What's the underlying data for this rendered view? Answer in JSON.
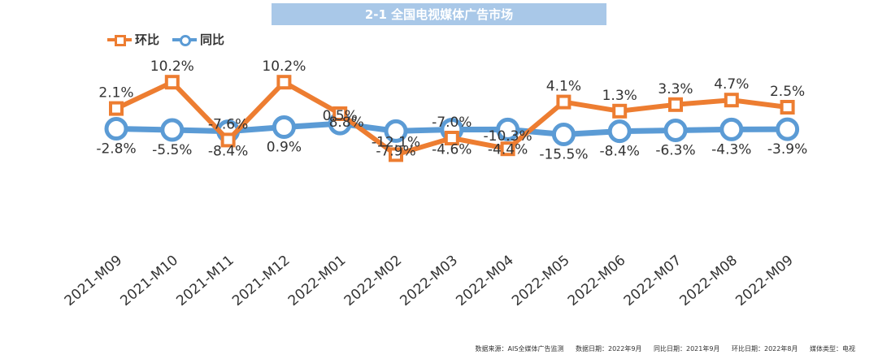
{
  "chart_data": {
    "type": "line",
    "title": "2-1 全国电视媒体广告市场",
    "categories": [
      "2021-M09",
      "2021-M10",
      "2021-M11",
      "2021-M12",
      "2022-M01",
      "2022-M02",
      "2022-M03",
      "2022-M04",
      "2022-M05",
      "2022-M06",
      "2022-M07",
      "2022-M08",
      "2022-M09"
    ],
    "series": [
      {
        "name": "环比",
        "color": "#ed7d31",
        "marker": "square",
        "values": [
          2.1,
          10.2,
          -7.6,
          10.2,
          0.5,
          -12.1,
          -7.0,
          -10.3,
          4.1,
          1.3,
          3.3,
          4.7,
          2.5
        ],
        "labels": [
          "2.1%",
          "10.2%",
          "-7.6%",
          "10.2%",
          "0.5%",
          "-12.1%",
          "-7.0%",
          "-10.3%",
          "4.1%",
          "1.3%",
          "3.3%",
          "4.7%",
          "2.5%"
        ]
      },
      {
        "name": "同比",
        "color": "#5b9bd5",
        "marker": "circle",
        "values": [
          -2.8,
          -5.5,
          -8.4,
          0.9,
          8.8,
          -7.9,
          -4.6,
          -4.4,
          -15.5,
          -8.4,
          -6.3,
          -4.3,
          -3.9
        ],
        "labels": [
          "-2.8%",
          "-5.5%",
          "-8.4%",
          "0.9%",
          "8.8%",
          "-7.9%",
          "-4.6%",
          "-4.4%",
          "-15.5%",
          "-8.4%",
          "-6.3%",
          "-4.3%",
          "-3.9%"
        ]
      }
    ],
    "xlabel": "",
    "ylabel": "",
    "legend": "top-left",
    "grid": false
  },
  "footer": {
    "source": "数据来源：AIS全媒体广告监测",
    "data_date": "数据日期：2022年9月",
    "yoy_date": "同比日期：2021年9月",
    "mom_date": "环比日期：2022年8月",
    "media_type": "媒体类型：电视"
  }
}
